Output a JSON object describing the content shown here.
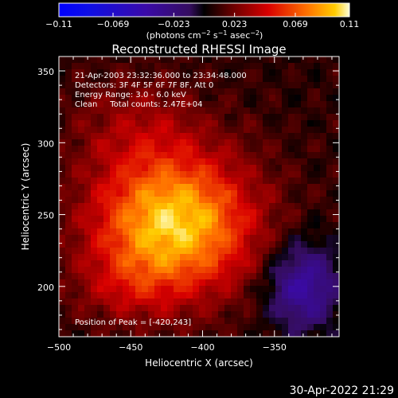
{
  "chart_data": {
    "type": "heatmap",
    "title": "Reconstructed RHESSI Image",
    "xlabel": "Heliocentric X (arcsec)",
    "ylabel": "Heliocentric Y (arcsec)",
    "xlim": [
      -500,
      -305
    ],
    "ylim": [
      165,
      360
    ],
    "x_ticks": [
      -500,
      -450,
      -400,
      -350
    ],
    "x_tick_labels": [
      "−500",
      "−450",
      "−400",
      "−350"
    ],
    "y_ticks": [
      200,
      250,
      300,
      350
    ],
    "y_tick_labels": [
      "200",
      "250",
      "300",
      "350"
    ],
    "colorbar": {
      "min": -0.11,
      "max": 0.11,
      "ticks": [
        -0.11,
        -0.069,
        -0.023,
        0.023,
        0.069,
        0.11
      ],
      "tick_labels": [
        "−0.11",
        "−0.069",
        "−0.023",
        "0.023",
        "0.069",
        "0.11"
      ],
      "units_parts": [
        "(photons cm",
        "−2",
        " s",
        "−1",
        " asec",
        "−2",
        ")"
      ]
    },
    "annotations": [
      "21-Apr-2003 23:32:36.000 to 23:34:48.000",
      "Detectors: 3F 4F 5F 6F 7F 8F, Att 0",
      "Energy Range: 3.0 - 6.0 keV",
      "Clean     Total counts: 2.47E+04"
    ],
    "peak_label": "Position of Peak = [-420,243]",
    "peak": [
      -420,
      243
    ],
    "grid": false
  },
  "footer_timestamp": "30-Apr-2022 21:29"
}
